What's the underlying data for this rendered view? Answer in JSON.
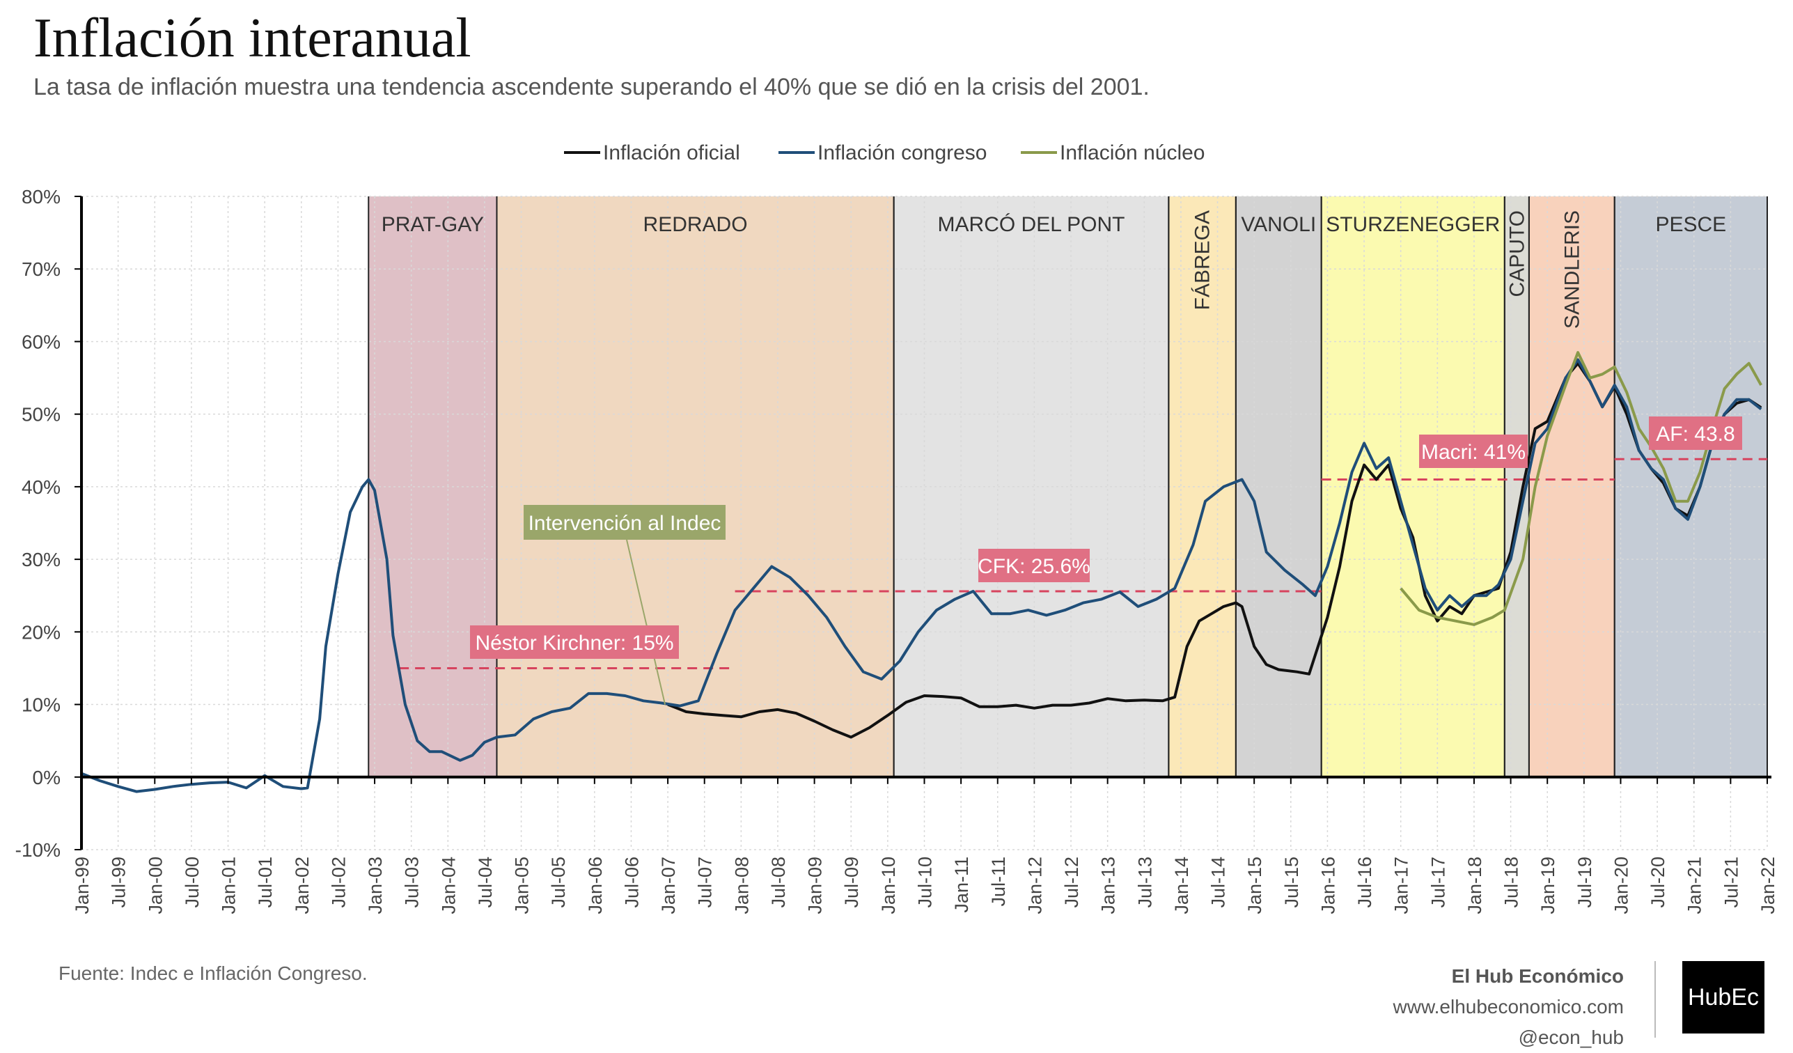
{
  "header": {
    "title": "Inflación interanual",
    "subtitle": "La tasa de inflación muestra una tendencia ascendente superando el 40% que se dió en la crisis del 2001."
  },
  "footer": {
    "source": "Fuente: Indec e Inflación Congreso.",
    "brand_name": "El Hub Económico",
    "brand_url": "www.elhubeconomico.com",
    "brand_handle": "@econ_hub",
    "logo_text": "HubEc"
  },
  "chart_data": {
    "type": "line",
    "ylim": [
      -10,
      80
    ],
    "y_tick_labels": [
      "-10%",
      "0%",
      "10%",
      "20%",
      "30%",
      "40%",
      "50%",
      "60%",
      "70%",
      "80%"
    ],
    "y_ticks": [
      -10,
      0,
      10,
      20,
      30,
      40,
      50,
      60,
      70,
      80
    ],
    "x_tick_labels": [
      "Jan-99",
      "Jul-99",
      "Jan-00",
      "Jul-00",
      "Jan-01",
      "Jul-01",
      "Jan-02",
      "Jul-02",
      "Jan-03",
      "Jul-03",
      "Jan-04",
      "Jul-04",
      "Jan-05",
      "Jul-05",
      "Jan-06",
      "Jul-06",
      "Jan-07",
      "Jul-07",
      "Jan-08",
      "Jul-08",
      "Jan-09",
      "Jul-09",
      "Jan-10",
      "Jul-10",
      "Jan-11",
      "Jul-11",
      "Jan-12",
      "Jul-12",
      "Jan-13",
      "Jul-13",
      "Jan-14",
      "Jul-14",
      "Jan-15",
      "Jul-15",
      "Jan-16",
      "Jul-16",
      "Jan-17",
      "Jul-17",
      "Jan-18",
      "Jul-18",
      "Jan-19",
      "Jul-19",
      "Jan-20",
      "Jul-20",
      "Jan-21",
      "Jul-21",
      "Jan-22"
    ],
    "grid": true,
    "legend_position": "top-center",
    "legend": [
      {
        "name": "Inflación oficial",
        "color": "#111111"
      },
      {
        "name": "Inflación congreso",
        "color": "#1f4e79"
      },
      {
        "name": "Inflación núcleo",
        "color": "#8a9a4a"
      }
    ],
    "periods": [
      {
        "label": "PRAT-GAY",
        "start": "2002-12",
        "end": "2004-09",
        "color": "#dfc0c6",
        "vertical": false
      },
      {
        "label": "REDRADO",
        "start": "2004-09",
        "end": "2010-02",
        "color": "#f0d8c0",
        "vertical": false
      },
      {
        "label": "MARCÓ DEL PONT",
        "start": "2010-02",
        "end": "2013-11",
        "color": "#e3e3e3",
        "vertical": false
      },
      {
        "label": "FÁBREGA",
        "start": "2013-11",
        "end": "2014-10",
        "color": "#fbe8b8",
        "vertical": true
      },
      {
        "label": "VANOLI",
        "start": "2014-10",
        "end": "2015-12",
        "color": "#d3d3d3",
        "vertical": false
      },
      {
        "label": "STURZENEGGER",
        "start": "2015-12",
        "end": "2018-06",
        "color": "#fbfab0",
        "vertical": false
      },
      {
        "label": "CAPUTO",
        "start": "2018-06",
        "end": "2018-10",
        "color": "#dcdcd5",
        "vertical": true
      },
      {
        "label": "SANDLERIS",
        "start": "2018-10",
        "end": "2019-12",
        "color": "#f8d2bc",
        "vertical": true
      },
      {
        "label": "PESCE",
        "start": "2019-12",
        "end": "2022-01",
        "color": "#c5ccd6",
        "vertical": false
      }
    ],
    "averages": [
      {
        "label": "Néstor Kirchner: 15%",
        "value": 15,
        "start": "2003-05",
        "end": "2007-12",
        "color": "#d7435e"
      },
      {
        "label": "CFK: 25.6%",
        "value": 25.6,
        "start": "2007-12",
        "end": "2015-12",
        "color": "#d7435e"
      },
      {
        "label": "Macri: 41%",
        "value": 41,
        "start": "2015-12",
        "end": "2019-12",
        "color": "#d7435e"
      },
      {
        "label": "AF: 43.8",
        "value": 43.8,
        "start": "2019-12",
        "end": "2022-01",
        "color": "#d7435e"
      }
    ],
    "annotation": {
      "text": "Intervención al Indec",
      "date": "2007-01",
      "value": 10,
      "color": "#9aa66a"
    },
    "series": [
      {
        "name": "Inflación oficial",
        "color": "#111111",
        "points": [
          [
            "2007-01",
            10.0
          ],
          [
            "2007-04",
            9.0
          ],
          [
            "2007-07",
            8.7
          ],
          [
            "2007-10",
            8.5
          ],
          [
            "2008-01",
            8.3
          ],
          [
            "2008-04",
            9.0
          ],
          [
            "2008-07",
            9.3
          ],
          [
            "2008-10",
            8.8
          ],
          [
            "2009-01",
            7.7
          ],
          [
            "2009-04",
            6.5
          ],
          [
            "2009-07",
            5.5
          ],
          [
            "2009-10",
            6.8
          ],
          [
            "2010-01",
            8.5
          ],
          [
            "2010-04",
            10.3
          ],
          [
            "2010-07",
            11.2
          ],
          [
            "2010-10",
            11.1
          ],
          [
            "2011-01",
            10.9
          ],
          [
            "2011-04",
            9.7
          ],
          [
            "2011-07",
            9.7
          ],
          [
            "2011-10",
            9.9
          ],
          [
            "2012-01",
            9.5
          ],
          [
            "2012-04",
            9.9
          ],
          [
            "2012-07",
            9.9
          ],
          [
            "2012-10",
            10.2
          ],
          [
            "2013-01",
            10.8
          ],
          [
            "2013-04",
            10.5
          ],
          [
            "2013-07",
            10.6
          ],
          [
            "2013-10",
            10.5
          ],
          [
            "2013-12",
            11.0
          ],
          [
            "2014-02",
            18.0
          ],
          [
            "2014-04",
            21.5
          ],
          [
            "2014-06",
            22.5
          ],
          [
            "2014-08",
            23.5
          ],
          [
            "2014-10",
            24.0
          ],
          [
            "2014-11",
            23.5
          ],
          [
            "2015-01",
            18.0
          ],
          [
            "2015-03",
            15.5
          ],
          [
            "2015-05",
            14.8
          ],
          [
            "2015-08",
            14.5
          ],
          [
            "2015-10",
            14.2
          ],
          [
            "2016-01",
            22.0
          ],
          [
            "2016-03",
            29.0
          ],
          [
            "2016-05",
            38.0
          ],
          [
            "2016-07",
            43.0
          ],
          [
            "2016-09",
            41.0
          ],
          [
            "2016-11",
            43.0
          ],
          [
            "2017-01",
            37.0
          ],
          [
            "2017-03",
            33.0
          ],
          [
            "2017-05",
            25.0
          ],
          [
            "2017-07",
            21.5
          ],
          [
            "2017-09",
            23.5
          ],
          [
            "2017-11",
            22.5
          ],
          [
            "2018-01",
            25.0
          ],
          [
            "2018-03",
            25.5
          ],
          [
            "2018-05",
            26.0
          ],
          [
            "2018-07",
            31.0
          ],
          [
            "2018-09",
            40.0
          ],
          [
            "2018-11",
            48.0
          ],
          [
            "2019-01",
            49.0
          ],
          [
            "2019-04",
            55.0
          ],
          [
            "2019-06",
            57.0
          ],
          [
            "2019-08",
            54.5
          ],
          [
            "2019-10",
            51.0
          ],
          [
            "2019-12",
            53.8
          ],
          [
            "2020-02",
            50.0
          ],
          [
            "2020-04",
            45.0
          ],
          [
            "2020-06",
            42.5
          ],
          [
            "2020-08",
            40.5
          ],
          [
            "2020-10",
            37.0
          ],
          [
            "2020-12",
            36.0
          ],
          [
            "2021-02",
            40.0
          ],
          [
            "2021-04",
            46.0
          ],
          [
            "2021-06",
            50.0
          ],
          [
            "2021-08",
            51.5
          ],
          [
            "2021-10",
            52.0
          ],
          [
            "2021-12",
            50.9
          ]
        ]
      },
      {
        "name": "Inflación congreso",
        "color": "#1f4e79",
        "points": [
          [
            "1999-01",
            0.5
          ],
          [
            "1999-04",
            -0.5
          ],
          [
            "1999-07",
            -1.3
          ],
          [
            "1999-10",
            -2.0
          ],
          [
            "2000-01",
            -1.7
          ],
          [
            "2000-04",
            -1.3
          ],
          [
            "2000-07",
            -1.0
          ],
          [
            "2000-10",
            -0.8
          ],
          [
            "2001-01",
            -0.7
          ],
          [
            "2001-04",
            -1.5
          ],
          [
            "2001-07",
            0.2
          ],
          [
            "2001-10",
            -1.3
          ],
          [
            "2002-01",
            -1.6
          ],
          [
            "2002-02",
            -1.5
          ],
          [
            "2002-04",
            8.0
          ],
          [
            "2002-05",
            18.0
          ],
          [
            "2002-07",
            28.0
          ],
          [
            "2002-09",
            36.5
          ],
          [
            "2002-11",
            40.0
          ],
          [
            "2002-12",
            41.0
          ],
          [
            "2003-01",
            39.5
          ],
          [
            "2003-03",
            30.0
          ],
          [
            "2003-04",
            19.5
          ],
          [
            "2003-06",
            10.0
          ],
          [
            "2003-08",
            5.0
          ],
          [
            "2003-10",
            3.5
          ],
          [
            "2003-12",
            3.5
          ],
          [
            "2004-03",
            2.3
          ],
          [
            "2004-05",
            3.0
          ],
          [
            "2004-07",
            4.8
          ],
          [
            "2004-09",
            5.5
          ],
          [
            "2004-12",
            5.8
          ],
          [
            "2005-03",
            8.0
          ],
          [
            "2005-06",
            9.0
          ],
          [
            "2005-09",
            9.5
          ],
          [
            "2005-12",
            11.5
          ],
          [
            "2006-03",
            11.5
          ],
          [
            "2006-06",
            11.2
          ],
          [
            "2006-09",
            10.5
          ],
          [
            "2006-12",
            10.2
          ],
          [
            "2007-03",
            9.8
          ],
          [
            "2007-06",
            10.5
          ],
          [
            "2007-09",
            17.0
          ],
          [
            "2007-12",
            23.0
          ],
          [
            "2008-03",
            26.0
          ],
          [
            "2008-06",
            29.0
          ],
          [
            "2008-09",
            27.5
          ],
          [
            "2008-12",
            25.0
          ],
          [
            "2009-03",
            22.0
          ],
          [
            "2009-06",
            18.0
          ],
          [
            "2009-09",
            14.5
          ],
          [
            "2009-12",
            13.5
          ],
          [
            "2010-03",
            16.0
          ],
          [
            "2010-06",
            20.0
          ],
          [
            "2010-09",
            23.0
          ],
          [
            "2010-12",
            24.5
          ],
          [
            "2011-03",
            25.6
          ],
          [
            "2011-06",
            22.5
          ],
          [
            "2011-09",
            22.5
          ],
          [
            "2011-12",
            23.0
          ],
          [
            "2012-03",
            22.3
          ],
          [
            "2012-06",
            23.0
          ],
          [
            "2012-09",
            24.0
          ],
          [
            "2012-12",
            24.5
          ],
          [
            "2013-03",
            25.5
          ],
          [
            "2013-06",
            23.5
          ],
          [
            "2013-09",
            24.5
          ],
          [
            "2013-12",
            26.0
          ],
          [
            "2014-03",
            32.0
          ],
          [
            "2014-05",
            38.0
          ],
          [
            "2014-08",
            40.0
          ],
          [
            "2014-11",
            41.0
          ],
          [
            "2015-01",
            38.0
          ],
          [
            "2015-03",
            31.0
          ],
          [
            "2015-06",
            28.5
          ],
          [
            "2015-09",
            26.5
          ],
          [
            "2015-11",
            25.0
          ],
          [
            "2016-01",
            29.0
          ],
          [
            "2016-03",
            35.0
          ],
          [
            "2016-05",
            42.0
          ],
          [
            "2016-07",
            46.0
          ],
          [
            "2016-09",
            42.5
          ],
          [
            "2016-11",
            44.0
          ],
          [
            "2017-01",
            38.0
          ],
          [
            "2017-03",
            32.0
          ],
          [
            "2017-05",
            26.0
          ],
          [
            "2017-07",
            23.0
          ],
          [
            "2017-09",
            25.0
          ],
          [
            "2017-11",
            23.5
          ],
          [
            "2018-01",
            25.0
          ],
          [
            "2018-03",
            25.0
          ],
          [
            "2018-05",
            26.5
          ],
          [
            "2018-07",
            30.0
          ],
          [
            "2018-09",
            38.0
          ],
          [
            "2018-11",
            46.0
          ],
          [
            "2019-01",
            48.0
          ],
          [
            "2019-04",
            55.0
          ],
          [
            "2019-06",
            57.5
          ],
          [
            "2019-08",
            54.5
          ],
          [
            "2019-10",
            51.0
          ],
          [
            "2019-12",
            54.0
          ],
          [
            "2020-02",
            51.0
          ],
          [
            "2020-04",
            45.0
          ],
          [
            "2020-06",
            42.5
          ],
          [
            "2020-08",
            41.0
          ],
          [
            "2020-10",
            37.0
          ],
          [
            "2020-12",
            35.5
          ],
          [
            "2021-02",
            40.0
          ],
          [
            "2021-04",
            46.0
          ],
          [
            "2021-06",
            50.0
          ],
          [
            "2021-08",
            52.0
          ],
          [
            "2021-10",
            52.0
          ],
          [
            "2021-12",
            50.7
          ]
        ]
      },
      {
        "name": "Inflación núcleo",
        "color": "#8a9a4a",
        "points": [
          [
            "2017-01",
            26.0
          ],
          [
            "2017-04",
            23.0
          ],
          [
            "2017-07",
            22.0
          ],
          [
            "2017-10",
            21.5
          ],
          [
            "2018-01",
            21.0
          ],
          [
            "2018-04",
            22.0
          ],
          [
            "2018-06",
            23.0
          ],
          [
            "2018-09",
            30.0
          ],
          [
            "2018-11",
            40.0
          ],
          [
            "2019-01",
            47.0
          ],
          [
            "2019-04",
            54.0
          ],
          [
            "2019-06",
            58.5
          ],
          [
            "2019-08",
            55.0
          ],
          [
            "2019-10",
            55.5
          ],
          [
            "2019-12",
            56.5
          ],
          [
            "2020-02",
            53.0
          ],
          [
            "2020-04",
            48.0
          ],
          [
            "2020-06",
            45.5
          ],
          [
            "2020-08",
            42.5
          ],
          [
            "2020-10",
            38.0
          ],
          [
            "2020-12",
            38.0
          ],
          [
            "2021-02",
            42.0
          ],
          [
            "2021-04",
            48.0
          ],
          [
            "2021-06",
            53.5
          ],
          [
            "2021-08",
            55.5
          ],
          [
            "2021-10",
            57.0
          ],
          [
            "2021-12",
            54.0
          ]
        ]
      }
    ]
  }
}
